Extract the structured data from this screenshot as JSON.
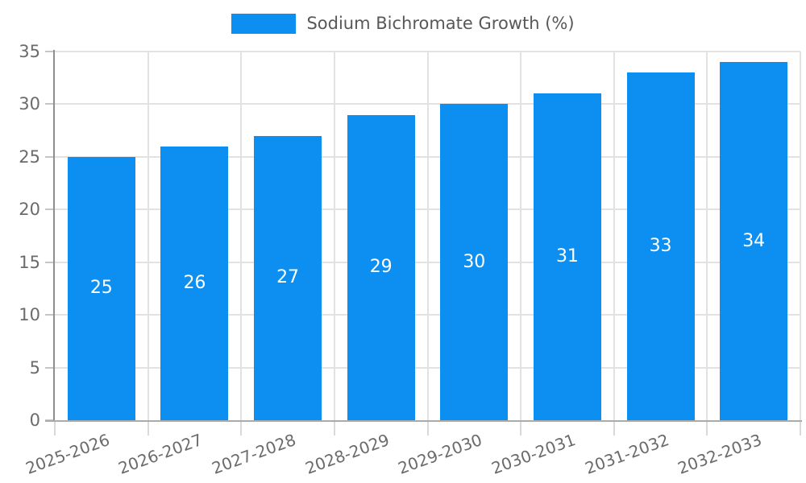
{
  "chart_data": {
    "type": "bar",
    "title": "",
    "legend": "Sodium Bichromate Growth (%)",
    "legend_position": "top-center",
    "categories": [
      "2025-2026",
      "2026-2027",
      "2027-2028",
      "2028-2029",
      "2029-2030",
      "2030-2031",
      "2031-2032",
      "2032-2033"
    ],
    "values": [
      25,
      26,
      27,
      29,
      30,
      31,
      33,
      34
    ],
    "xlabel": "",
    "ylabel": "",
    "ylim": [
      0,
      35
    ],
    "yticks": [
      0,
      5,
      10,
      15,
      20,
      25,
      30,
      35
    ],
    "grid": true,
    "colors": {
      "bar": "#0d8ff2",
      "bar_label": "#ffffff",
      "grid": "#e2e2e2",
      "y_axis": "#8f8f8f",
      "x_axis": "#ababab",
      "y_tick": "#c6c6c6",
      "x_tick": "#d9d9d9",
      "tick_label": "#6b6b6b",
      "legend_text": "#585858",
      "background": "#ffffff"
    }
  }
}
